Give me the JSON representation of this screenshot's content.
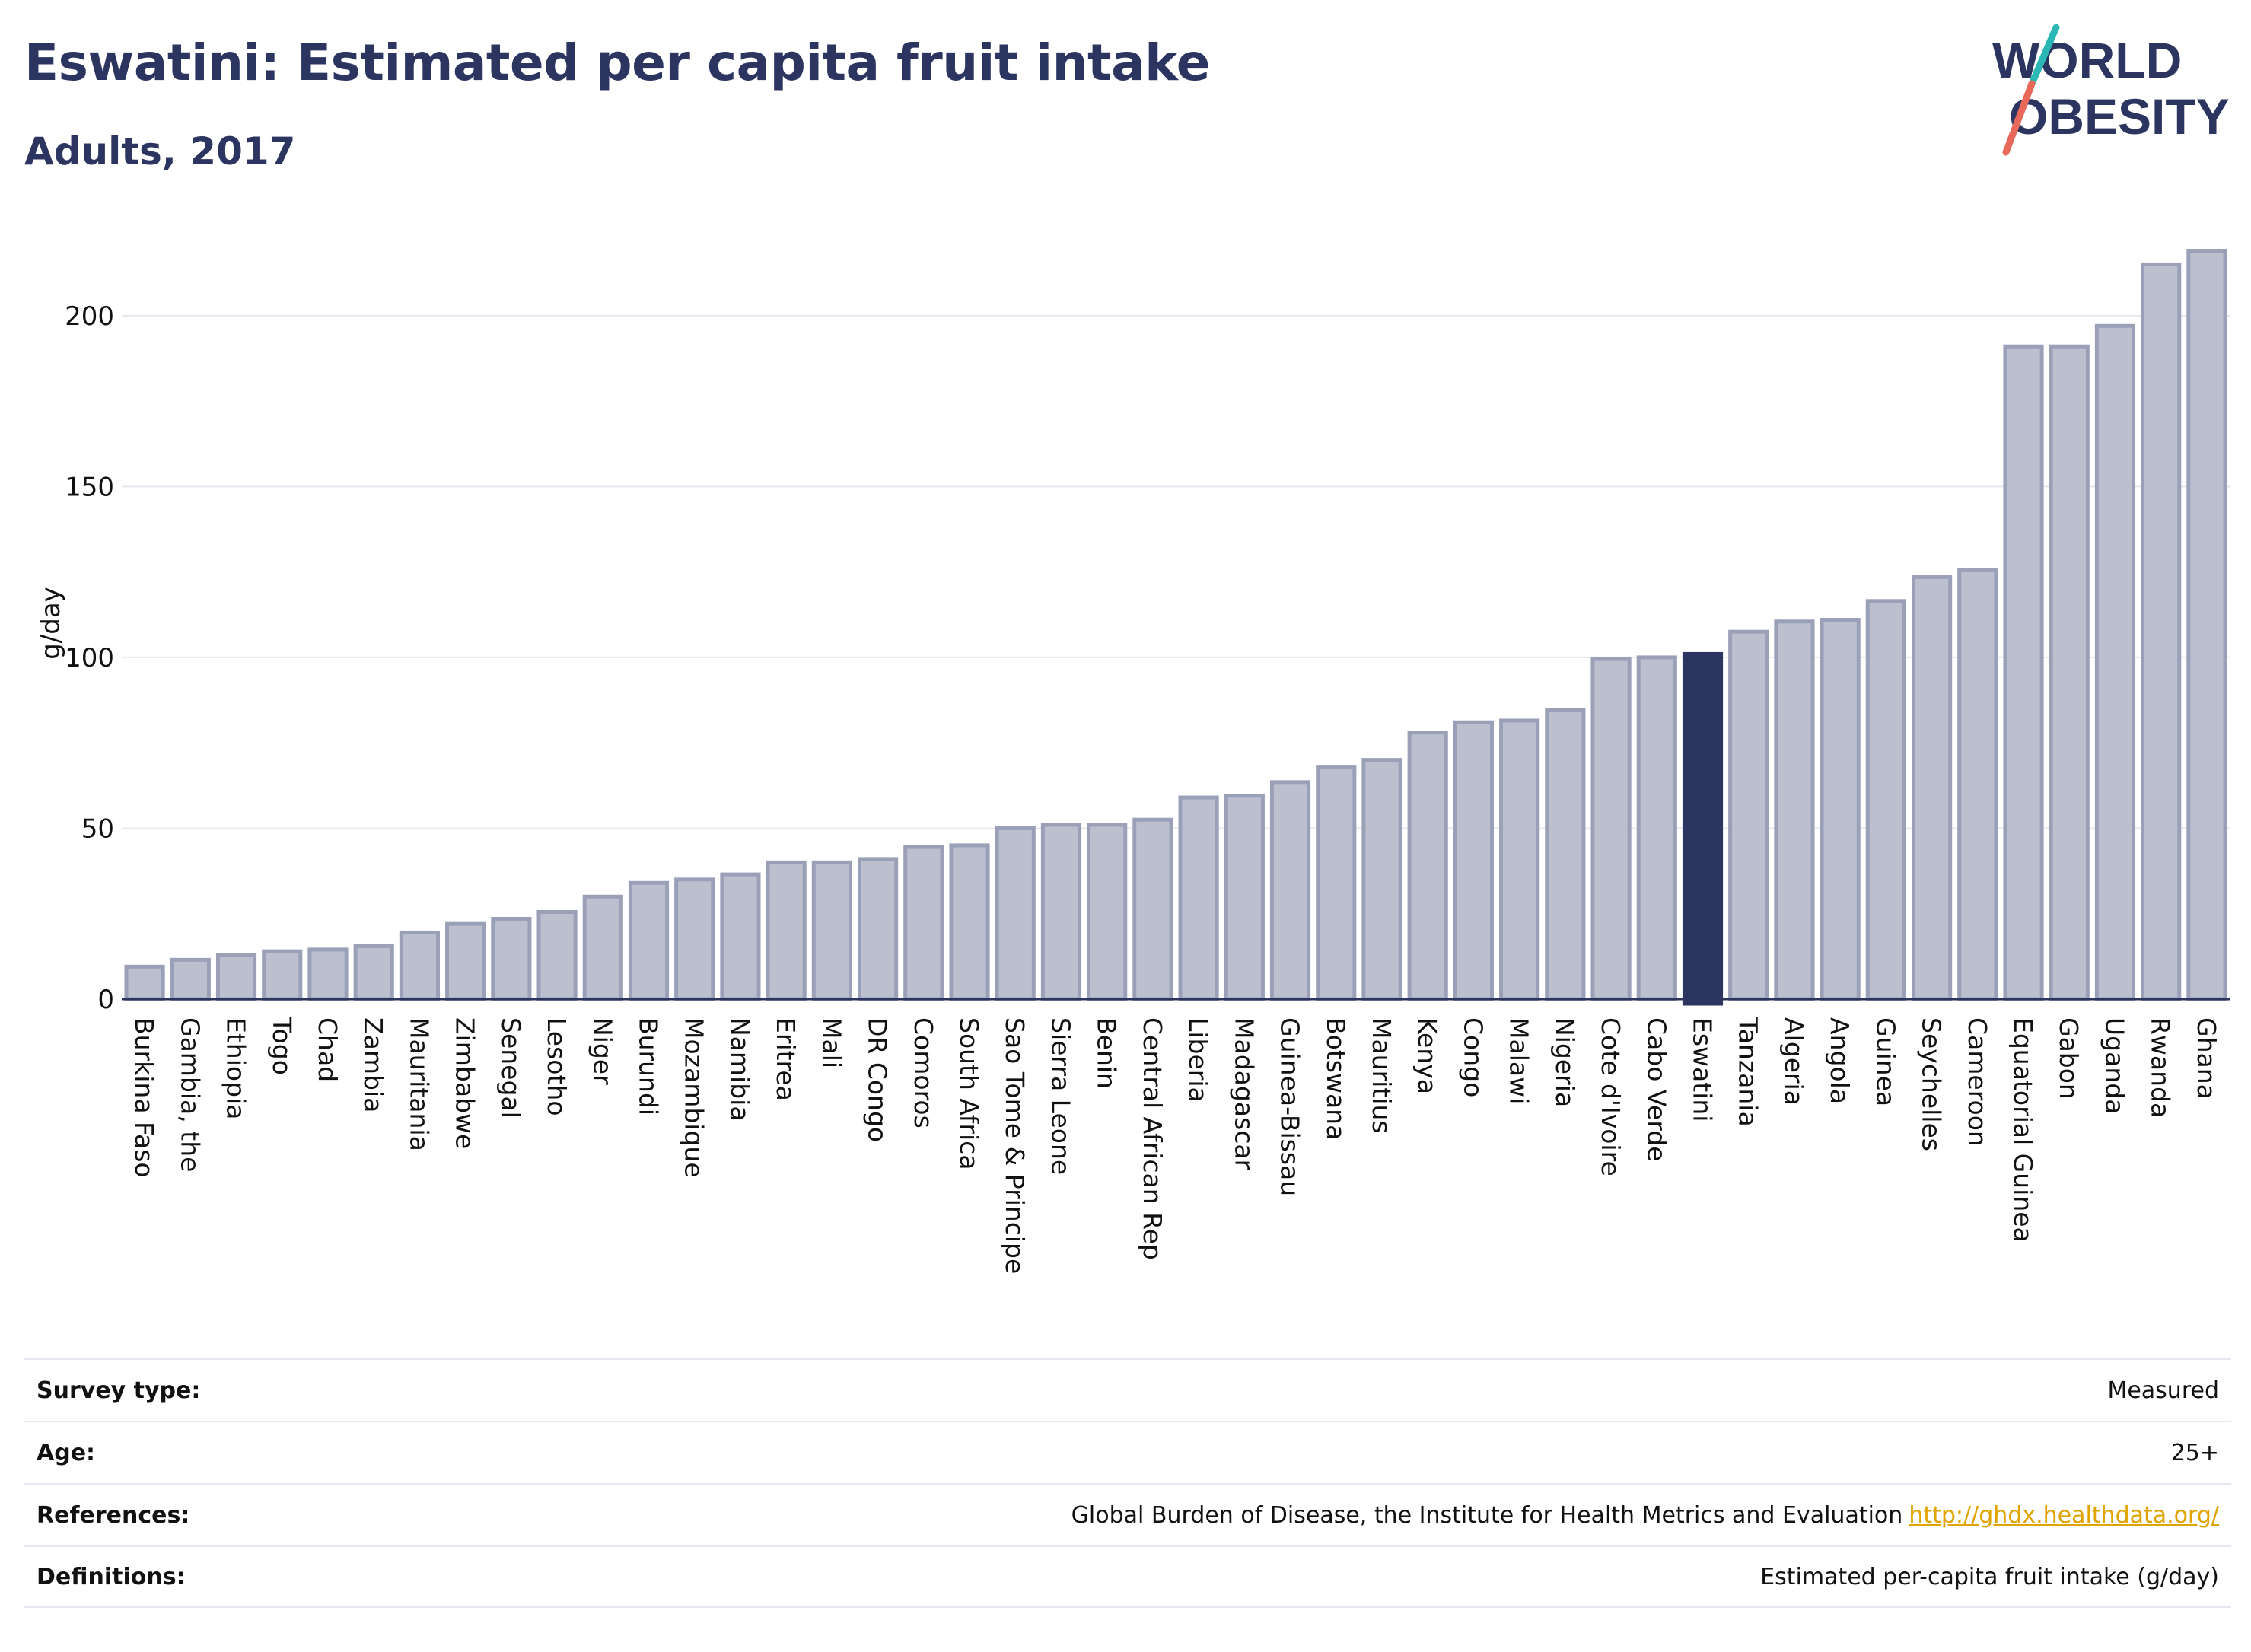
{
  "header": {
    "title": "Eswatini: Estimated per capita fruit intake",
    "subtitle": "Adults, 2017",
    "logo_text_top": "WORLD",
    "logo_text_bottom": "OBESITY"
  },
  "colors": {
    "title": "#2b3560",
    "bar_default": "#bcc0ce",
    "bar_default_stroke": "#9aa0b8",
    "bar_highlight": "#2b3560",
    "gridline": "#e6e8ef",
    "link": "#e0a400",
    "logo_slash_teal": "#2bb7b3",
    "logo_slash_red": "#e8685a"
  },
  "chart_data": {
    "type": "bar",
    "ylabel": "g/day",
    "ylim": [
      0,
      220
    ],
    "yticks": [
      0,
      50,
      100,
      150,
      200
    ],
    "grid": true,
    "highlight": "Eswatini",
    "categories": [
      "Burkina Faso",
      "Gambia, the",
      "Ethiopia",
      "Togo",
      "Chad",
      "Zambia",
      "Mauritania",
      "Zimbabwe",
      "Senegal",
      "Lesotho",
      "Niger",
      "Burundi",
      "Mozambique",
      "Namibia",
      "Eritrea",
      "Mali",
      "DR Congo",
      "Comoros",
      "South Africa",
      "Sao Tome & Principe",
      "Sierra Leone",
      "Benin",
      "Central African Rep",
      "Liberia",
      "Madagascar",
      "Guinea-Bissau",
      "Botswana",
      "Mauritius",
      "Kenya",
      "Congo",
      "Malawi",
      "Nigeria",
      "Cote d'Ivoire",
      "Cabo Verde",
      "Eswatini",
      "Tanzania",
      "Algeria",
      "Angola",
      "Guinea",
      "Seychelles",
      "Cameroon",
      "Equatorial Guinea",
      "Gabon",
      "Uganda",
      "Rwanda",
      "Ghana"
    ],
    "values": [
      9.5,
      11.5,
      13,
      14,
      14.5,
      15.5,
      19.5,
      22,
      23.5,
      25.5,
      30,
      34,
      35,
      36.5,
      40,
      40,
      41,
      44.5,
      45,
      50,
      51,
      51,
      52.5,
      59,
      59.5,
      63.5,
      68,
      70,
      78,
      81,
      81.5,
      84.5,
      99.5,
      100,
      101,
      107.5,
      110.5,
      111,
      116.5,
      123.5,
      125.5,
      191,
      191,
      197,
      215,
      219
    ]
  },
  "info": {
    "rows": [
      {
        "label": "Survey type:",
        "value": "Measured"
      },
      {
        "label": "Age:",
        "value": "25+"
      },
      {
        "label": "References:",
        "value": "Global Burden of Disease, the Institute for Health Metrics and Evaluation",
        "link": "http://ghdx.healthdata.org/"
      },
      {
        "label": "Definitions:",
        "value": "Estimated per-capita fruit intake (g/day)"
      }
    ]
  }
}
